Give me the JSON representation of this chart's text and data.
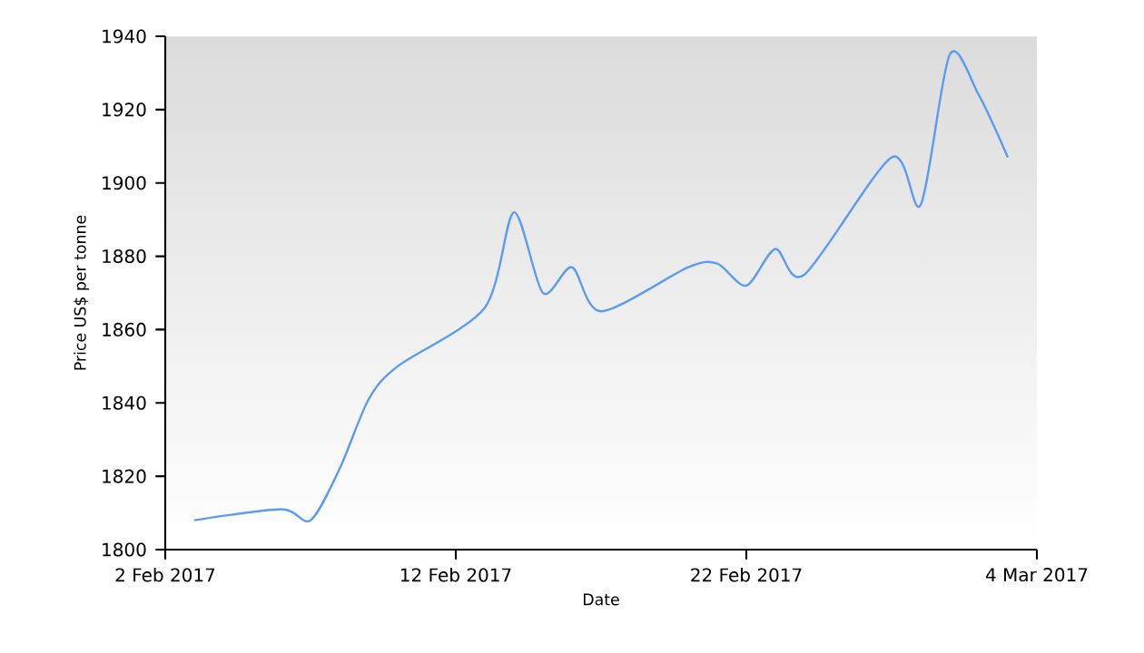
{
  "chart_data": {
    "type": "line",
    "xlabel": "Date",
    "ylabel": "Price US$ per tonne",
    "x": [
      "2017-02-03",
      "2017-02-06",
      "2017-02-07",
      "2017-02-08",
      "2017-02-09",
      "2017-02-10",
      "2017-02-13",
      "2017-02-14",
      "2017-02-15",
      "2017-02-16",
      "2017-02-17",
      "2017-02-20",
      "2017-02-21",
      "2017-02-22",
      "2017-02-23",
      "2017-02-24",
      "2017-02-27",
      "2017-02-28",
      "2017-03-01",
      "2017-03-02",
      "2017-03-03"
    ],
    "series": [
      {
        "color": "#5b9bf0",
        "values": [
          1808,
          1811,
          1808,
          1822,
          1841,
          1850,
          1866,
          1892,
          1870,
          1877,
          1865,
          1877,
          1878,
          1872,
          1882,
          1875,
          1907,
          1894,
          1935,
          1924,
          1907
        ]
      }
    ],
    "xlim": [
      "2017-02-02",
      "2017-03-04"
    ],
    "xticks": [
      {
        "value": "2017-02-02",
        "label": "2 Feb 2017"
      },
      {
        "value": "2017-02-12",
        "label": "12 Feb 2017"
      },
      {
        "value": "2017-02-22",
        "label": "22 Feb 2017"
      },
      {
        "value": "2017-03-04",
        "label": "4 Mar 2017"
      }
    ],
    "ylim": [
      1800,
      1940
    ],
    "yticks": [
      1800,
      1820,
      1840,
      1860,
      1880,
      1900,
      1920,
      1940
    ],
    "grid": false,
    "marker": "none",
    "line_style": "solid"
  }
}
